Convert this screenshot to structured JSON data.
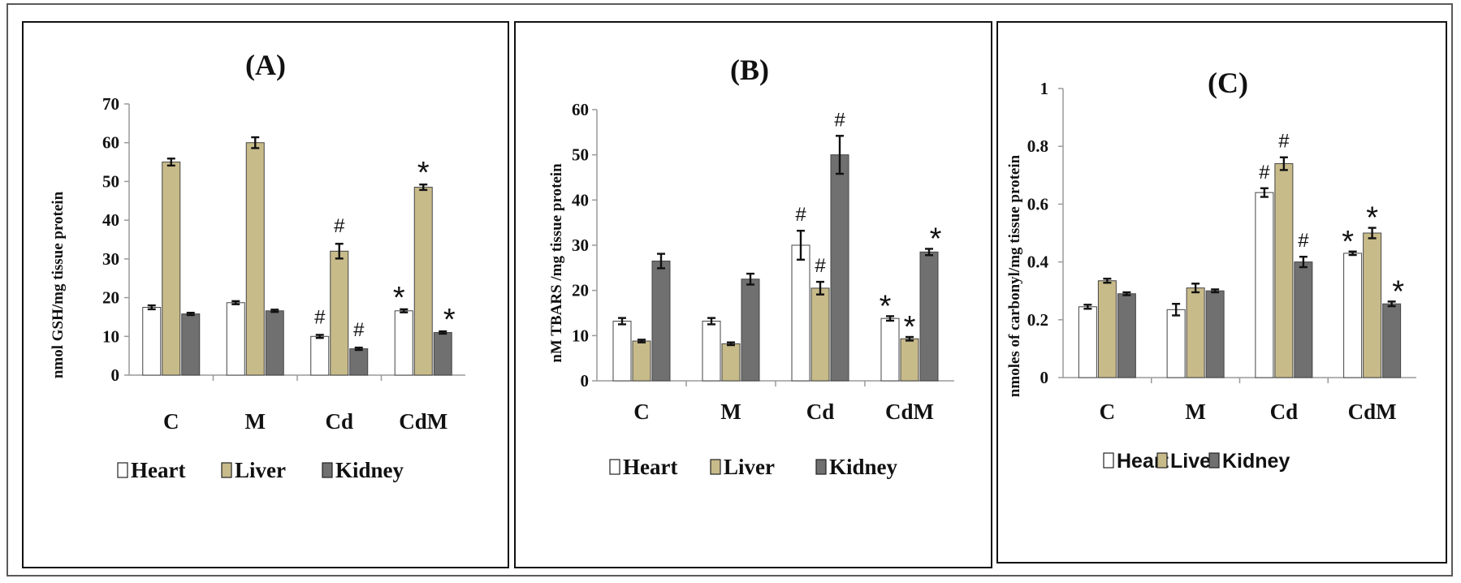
{
  "colors": {
    "heart": "#ffffff",
    "liver": "#c8bb8a",
    "kidney": "#707070"
  },
  "chart_data": [
    {
      "type": "bar",
      "title": "(A)",
      "ylabel": "nmol GSH/mg tissue protein",
      "xlabel": "",
      "ylim": [
        0,
        70
      ],
      "yticks": [
        0,
        10,
        20,
        30,
        40,
        50,
        60,
        70
      ],
      "categories": [
        "C",
        "M",
        "Cd",
        "CdM"
      ],
      "series": [
        {
          "name": "Heart",
          "values": [
            17.5,
            18.7,
            10.0,
            16.6
          ],
          "errors": [
            0.5,
            0.4,
            0.4,
            0.4
          ],
          "marks": [
            "",
            "",
            "#",
            "*"
          ]
        },
        {
          "name": "Liver",
          "values": [
            55.0,
            60.0,
            32.0,
            48.5
          ],
          "errors": [
            0.9,
            1.4,
            1.9,
            0.7
          ],
          "marks": [
            "",
            "",
            "#",
            "*"
          ]
        },
        {
          "name": "Kidney",
          "values": [
            15.8,
            16.6,
            6.8,
            11.0
          ],
          "errors": [
            0.3,
            0.3,
            0.3,
            0.3
          ],
          "marks": [
            "",
            "",
            "#",
            "*"
          ]
        }
      ],
      "legend": [
        "Heart",
        "Liver",
        "Kidney"
      ]
    },
    {
      "type": "bar",
      "title": "(B)",
      "ylabel": "nM TBARS /mg tissue protein",
      "xlabel": "",
      "ylim": [
        0,
        60
      ],
      "yticks": [
        0,
        10,
        20,
        30,
        40,
        50,
        60
      ],
      "categories": [
        "C",
        "M",
        "Cd",
        "CdM"
      ],
      "series": [
        {
          "name": "Heart",
          "values": [
            13.2,
            13.2,
            30.0,
            13.8
          ],
          "errors": [
            0.7,
            0.7,
            3.2,
            0.5
          ],
          "marks": [
            "",
            "",
            "#",
            "*"
          ]
        },
        {
          "name": "Liver",
          "values": [
            8.8,
            8.2,
            20.5,
            9.3
          ],
          "errors": [
            0.3,
            0.3,
            1.4,
            0.4
          ],
          "marks": [
            "",
            "",
            "#",
            "*"
          ]
        },
        {
          "name": "Kidney",
          "values": [
            26.5,
            22.5,
            50.0,
            28.5
          ],
          "errors": [
            1.6,
            1.2,
            4.2,
            0.7
          ],
          "marks": [
            "",
            "",
            "#",
            "*"
          ]
        }
      ],
      "legend": [
        "Heart",
        "Liver",
        "Kidney"
      ]
    },
    {
      "type": "bar",
      "title": "(C)",
      "ylabel": "nmoles of carbonyl/mg tissue protein",
      "xlabel": "",
      "ylim": [
        0,
        1
      ],
      "yticks": [
        0,
        0.2,
        0.4,
        0.6,
        0.8,
        1
      ],
      "categories": [
        "C",
        "M",
        "Cd",
        "CdM"
      ],
      "series": [
        {
          "name": "Heart",
          "values": [
            0.245,
            0.235,
            0.64,
            0.43
          ],
          "errors": [
            0.007,
            0.02,
            0.015,
            0.006
          ],
          "marks": [
            "",
            "",
            "#",
            "*"
          ]
        },
        {
          "name": "Liver",
          "values": [
            0.335,
            0.31,
            0.74,
            0.5
          ],
          "errors": [
            0.007,
            0.015,
            0.022,
            0.018
          ],
          "marks": [
            "",
            "",
            "#",
            "*"
          ]
        },
        {
          "name": "Kidney",
          "values": [
            0.29,
            0.3,
            0.4,
            0.255
          ],
          "errors": [
            0.005,
            0.005,
            0.018,
            0.008
          ],
          "marks": [
            "",
            "",
            "#",
            "*"
          ]
        }
      ],
      "legend": [
        "Heart",
        "Liver",
        "Kidney"
      ]
    }
  ]
}
